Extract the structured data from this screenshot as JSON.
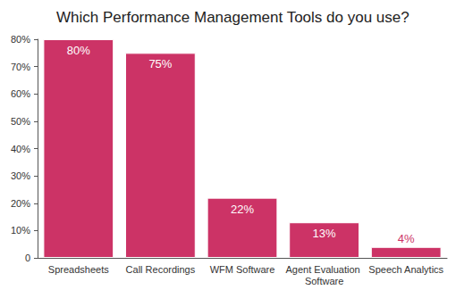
{
  "chart_data": {
    "type": "bar",
    "title": "Which Performance Management Tools do you use?",
    "categories": [
      "Spreadsheets",
      "Call Recordings",
      "WFM Software",
      "Agent Evaluation Software",
      "Speech Analytics"
    ],
    "values": [
      80,
      75,
      22,
      13,
      4
    ],
    "value_labels": [
      "80%",
      "75%",
      "22%",
      "13%",
      "4%"
    ],
    "color": "#cc3366",
    "ylim": [
      0,
      80
    ],
    "yticks": [
      0,
      {
        "value": 10,
        "label": "10%"
      },
      {
        "value": 20,
        "label": "20%"
      },
      {
        "value": 30,
        "label": "30%"
      },
      {
        "value": 40,
        "label": "40%"
      },
      {
        "value": 50,
        "label": "50%"
      },
      {
        "value": 60,
        "label": "60%"
      },
      {
        "value": 70,
        "label": "70%"
      },
      {
        "value": 80,
        "label": "80%"
      }
    ],
    "grid": false,
    "data_labels": true
  }
}
